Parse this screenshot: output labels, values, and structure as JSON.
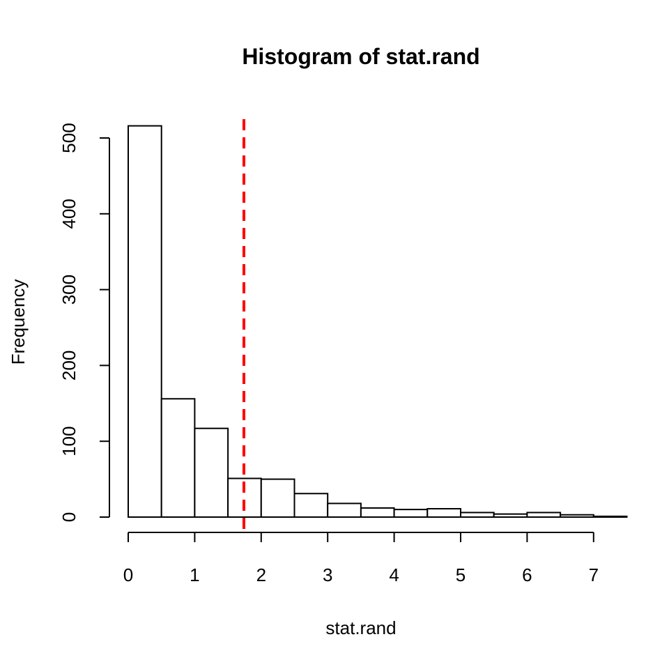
{
  "chart_data": {
    "type": "bar",
    "title": "Histogram of stat.rand",
    "xlabel": "stat.rand",
    "ylabel": "Frequency",
    "bin_width": 0.5,
    "bins": [
      {
        "start": 0.0,
        "end": 0.5,
        "count": 516
      },
      {
        "start": 0.5,
        "end": 1.0,
        "count": 156
      },
      {
        "start": 1.0,
        "end": 1.5,
        "count": 117
      },
      {
        "start": 1.5,
        "end": 2.0,
        "count": 51
      },
      {
        "start": 2.0,
        "end": 2.5,
        "count": 50
      },
      {
        "start": 2.5,
        "end": 3.0,
        "count": 31
      },
      {
        "start": 3.0,
        "end": 3.5,
        "count": 18
      },
      {
        "start": 3.5,
        "end": 4.0,
        "count": 12
      },
      {
        "start": 4.0,
        "end": 4.5,
        "count": 10
      },
      {
        "start": 4.5,
        "end": 5.0,
        "count": 11
      },
      {
        "start": 5.0,
        "end": 5.5,
        "count": 6
      },
      {
        "start": 5.5,
        "end": 6.0,
        "count": 4
      },
      {
        "start": 6.0,
        "end": 6.5,
        "count": 6
      },
      {
        "start": 6.5,
        "end": 7.0,
        "count": 3
      },
      {
        "start": 7.0,
        "end": 7.5,
        "count": 1
      }
    ],
    "xlim": [
      0,
      7.3
    ],
    "ylim": [
      0,
      525
    ],
    "x_ticks": [
      0,
      1,
      2,
      3,
      4,
      5,
      6,
      7
    ],
    "y_ticks": [
      0,
      100,
      200,
      300,
      400,
      500
    ],
    "reference_line": {
      "x": 1.74,
      "color": "#ff0000",
      "style": "dashed"
    },
    "bar_fill": "#ffffff",
    "bar_stroke": "#000000",
    "grid": false,
    "legend": "none"
  }
}
